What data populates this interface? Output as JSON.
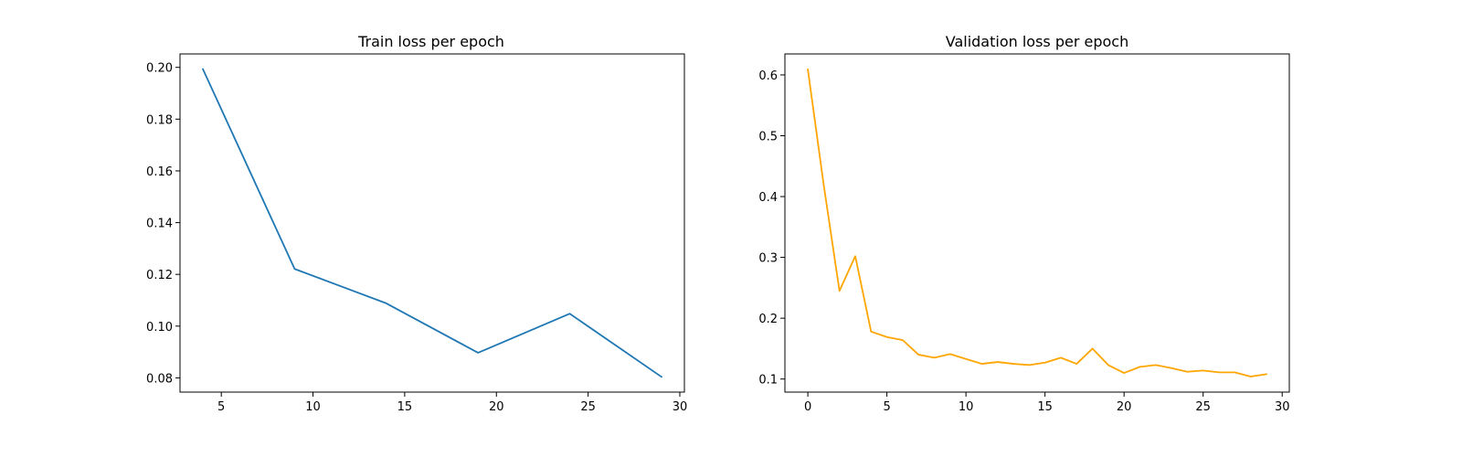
{
  "chart_data": [
    {
      "type": "line",
      "title": "Train loss per epoch",
      "xlabel": "",
      "ylabel": "",
      "x": [
        4,
        9,
        14,
        19,
        24,
        29
      ],
      "series": [
        {
          "values": [
            0.1993,
            0.1221,
            0.1088,
            0.0897,
            0.1048,
            0.0804
          ],
          "color": "#1f77b4"
        }
      ],
      "xlim": [
        2.75,
        30.25
      ],
      "ylim": [
        0.0745,
        0.2052
      ],
      "xticks": [
        5,
        10,
        15,
        20,
        25,
        30
      ],
      "xtick_labels": [
        "5",
        "10",
        "15",
        "20",
        "25",
        "30"
      ],
      "yticks": [
        0.08,
        0.1,
        0.12,
        0.14,
        0.16,
        0.18,
        0.2
      ],
      "ytick_labels": [
        "0.08",
        "0.10",
        "0.12",
        "0.14",
        "0.16",
        "0.18",
        "0.20"
      ],
      "grid": false,
      "legend": false
    },
    {
      "type": "line",
      "title": "Validation loss per epoch",
      "xlabel": "",
      "ylabel": "",
      "x": [
        0,
        1,
        2,
        3,
        4,
        5,
        6,
        7,
        8,
        9,
        10,
        11,
        12,
        13,
        14,
        15,
        16,
        17,
        18,
        19,
        20,
        21,
        22,
        23,
        24,
        25,
        26,
        27,
        28,
        29
      ],
      "series": [
        {
          "values": [
            0.609,
            0.42,
            0.245,
            0.302,
            0.178,
            0.169,
            0.164,
            0.14,
            0.135,
            0.141,
            0.133,
            0.125,
            0.128,
            0.125,
            0.123,
            0.127,
            0.135,
            0.125,
            0.15,
            0.123,
            0.11,
            0.12,
            0.123,
            0.118,
            0.112,
            0.114,
            0.111,
            0.111,
            0.104,
            0.108
          ],
          "color": "#ffa500"
        }
      ],
      "xlim": [
        -1.45,
        30.45
      ],
      "ylim": [
        0.0785,
        0.6345
      ],
      "xticks": [
        0,
        5,
        10,
        15,
        20,
        25,
        30
      ],
      "xtick_labels": [
        "0",
        "5",
        "10",
        "15",
        "20",
        "25",
        "30"
      ],
      "yticks": [
        0.1,
        0.2,
        0.3,
        0.4,
        0.5,
        0.6
      ],
      "ytick_labels": [
        "0.1",
        "0.2",
        "0.3",
        "0.4",
        "0.5",
        "0.6"
      ],
      "grid": false,
      "legend": false
    }
  ]
}
